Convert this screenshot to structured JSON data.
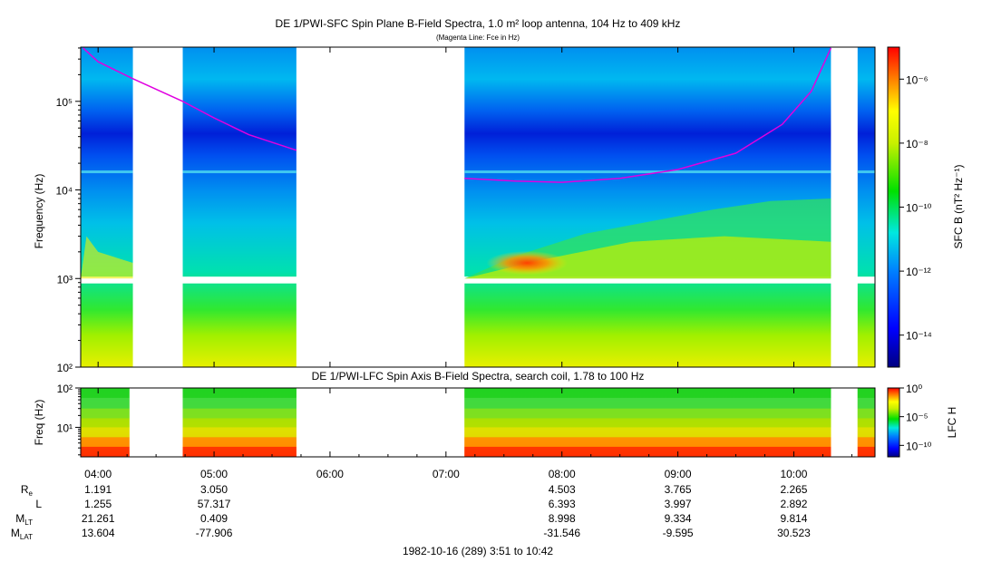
{
  "chart_data": [
    {
      "type": "heatmap",
      "title": "DE 1/PWI-SFC  Spin Plane B-Field Spectra, 1.0 m² loop antenna, 104 Hz to 409 kHz",
      "subtitle": "(Magenta Line: Fce in Hz)",
      "ylabel": "Frequency (Hz)",
      "yscale": "log",
      "ylim": [
        100,
        409000
      ],
      "yticks": [
        {
          "v": 100,
          "label": "10²"
        },
        {
          "v": 1000,
          "label": "10³"
        },
        {
          "v": 10000,
          "label": "10⁴"
        },
        {
          "v": 100000,
          "label": "10⁵"
        }
      ],
      "x_hours_range": [
        3.85,
        10.7
      ],
      "colorbar": {
        "label_html": "SFC B (nT² Hz⁻¹)",
        "scale": "log",
        "range_exp": [
          -15,
          -5
        ],
        "ticks": [
          {
            "e": -6,
            "label": "10⁻⁶"
          },
          {
            "e": -8,
            "label": "10⁻⁸"
          },
          {
            "e": -10,
            "label": "10⁻¹⁰"
          },
          {
            "e": -12,
            "label": "10⁻¹²"
          },
          {
            "e": -14,
            "label": "10⁻¹⁴"
          }
        ]
      },
      "data_intervals_hours": [
        [
          3.85,
          4.3
        ],
        [
          4.73,
          5.71
        ],
        [
          7.16,
          10.32
        ],
        [
          10.55,
          10.7
        ]
      ],
      "fce_line": {
        "name": "Fce in Hz",
        "color": "#e000e0",
        "segments": [
          [
            [
              3.87,
              400000
            ],
            [
              4.0,
              280000
            ],
            [
              4.3,
              180000
            ],
            [
              4.73,
              100000
            ],
            [
              5.0,
              65000
            ],
            [
              5.3,
              42000
            ],
            [
              5.71,
              28000
            ]
          ],
          [
            [
              7.16,
              13500
            ],
            [
              7.6,
              12600
            ],
            [
              8.0,
              12200
            ],
            [
              8.5,
              13500
            ],
            [
              9.0,
              17000
            ],
            [
              9.5,
              26000
            ],
            [
              9.9,
              55000
            ],
            [
              10.15,
              130000
            ],
            [
              10.32,
              400000
            ]
          ]
        ]
      }
    },
    {
      "type": "heatmap",
      "title": "DE 1/PWI-LFC  Spin Axis B-Field Spectra, search coil, 1.78 to 100 Hz",
      "ylabel": "Freq (Hz)",
      "yscale": "log",
      "ylim": [
        1.78,
        100
      ],
      "yticks": [
        {
          "v": 10,
          "label": "10¹"
        },
        {
          "v": 100,
          "label": "10²"
        }
      ],
      "colorbar": {
        "label": "LFC H",
        "scale": "log",
        "range_exp": [
          -12,
          0
        ],
        "ticks": [
          {
            "e": 0,
            "label": "10⁰"
          },
          {
            "e": -5,
            "label": "10⁻⁵"
          },
          {
            "e": -10,
            "label": "10⁻¹⁰"
          }
        ]
      },
      "data_intervals_hours": [
        [
          3.85,
          4.27
        ],
        [
          4.73,
          5.71
        ],
        [
          7.16,
          10.32
        ],
        [
          10.55,
          10.7
        ]
      ]
    }
  ],
  "time_ticks": [
    "04:00",
    "05:00",
    "06:00",
    "07:00",
    "08:00",
    "09:00",
    "10:00"
  ],
  "ephemeris": {
    "row_labels": [
      {
        "main": "R",
        "sub": "e"
      },
      {
        "main": "L",
        "sub": ""
      },
      {
        "main": "M",
        "sub": "LT"
      },
      {
        "main": "M",
        "sub": "LAT"
      }
    ],
    "columns": [
      {
        "h": 4.0,
        "values": [
          "1.191",
          "1.255",
          "21.261",
          "13.604"
        ]
      },
      {
        "h": 5.0,
        "values": [
          "3.050",
          "57.317",
          "0.409",
          "-77.906"
        ]
      },
      {
        "h": 8.0,
        "values": [
          "4.503",
          "6.393",
          "8.998",
          "-31.546"
        ]
      },
      {
        "h": 9.0,
        "values": [
          "3.765",
          "3.997",
          "9.334",
          "-9.595"
        ]
      },
      {
        "h": 10.0,
        "values": [
          "2.265",
          "2.892",
          "9.814",
          "30.523"
        ]
      }
    ]
  },
  "footer": "1982-10-16 (289) 3:51 to 10:42"
}
